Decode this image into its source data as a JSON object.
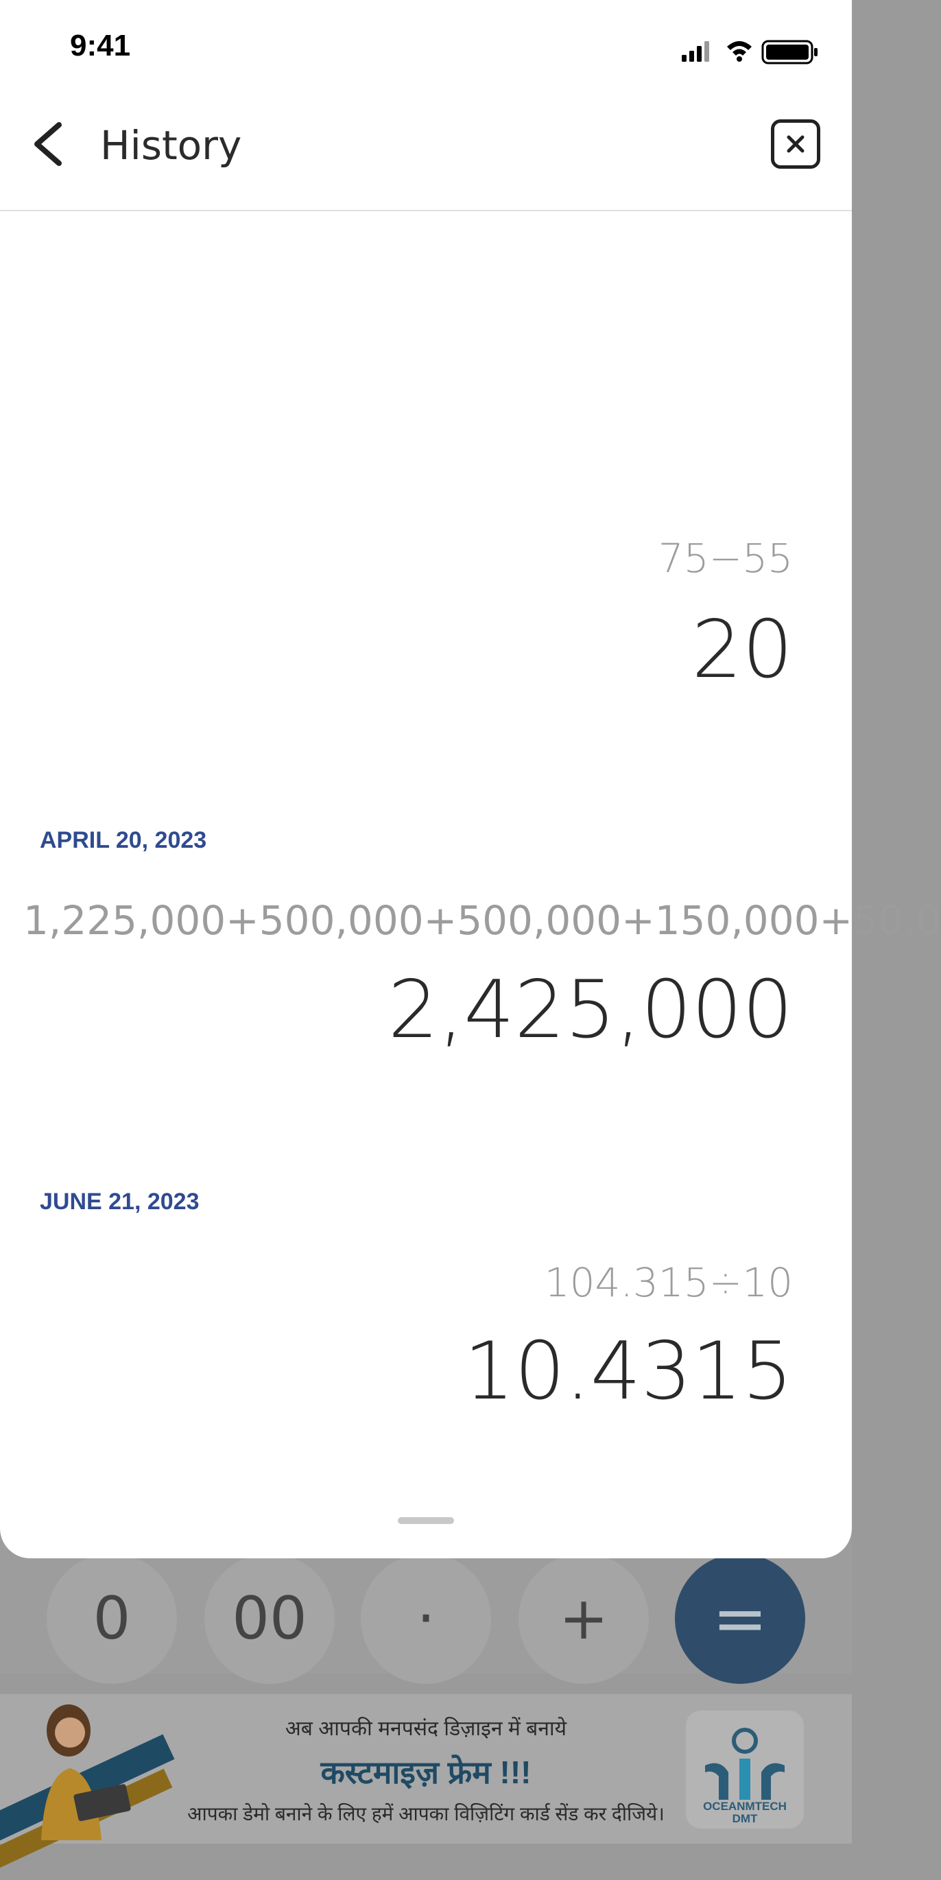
{
  "status_bar": {
    "time": "9:41"
  },
  "header": {
    "title": "History"
  },
  "history": [
    {
      "date": "",
      "expression": "75−55",
      "result": "20"
    },
    {
      "date": "APRIL 20, 2023",
      "expression": "1,225,000+500,000+500,000+150,000+50,0",
      "result": "2,425,000"
    },
    {
      "date": "JUNE 21, 2023",
      "expression": "104.315÷10",
      "result": "10.4315"
    }
  ],
  "keypad": {
    "zero": "0",
    "double_zero": "00",
    "dot": "·",
    "plus": "+",
    "equals": "="
  },
  "ad": {
    "line1": "अब आपकी मनपसंद डिज़ाइन में बनाये",
    "line2": "कस्टमाइज़ फ्रेम !!!",
    "line3": "आपका डेमो बनाने के लिए हमें आपका विज़िटिंग कार्ड सेंड कर दीजिये।",
    "brand_line1": "OCEANMTECH",
    "brand_line2": "DMT"
  }
}
